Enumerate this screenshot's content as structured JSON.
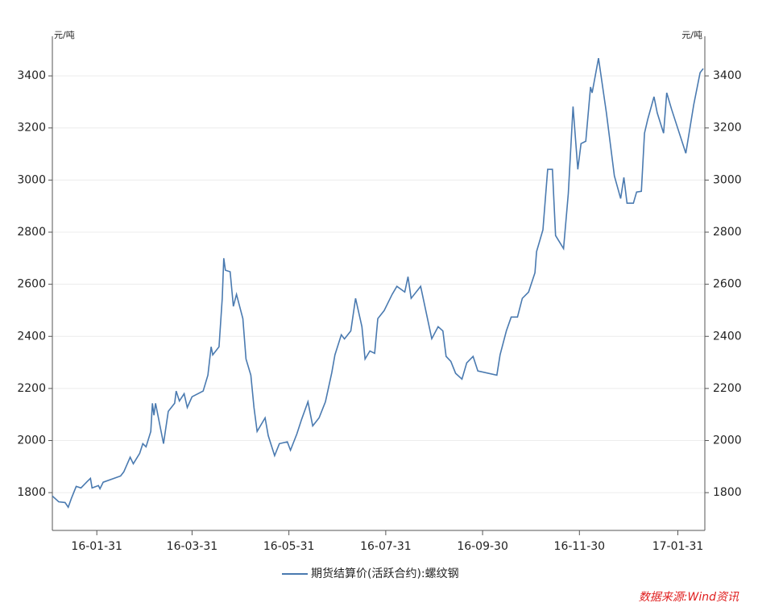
{
  "chart_data": {
    "type": "line",
    "y_unit": "元/吨",
    "y2_unit": "元/吨",
    "source": "数据来源:Wind资讯",
    "xlim": [
      "16-01-03",
      "17-02-17"
    ],
    "xticks": [
      "16-01-31",
      "16-03-31",
      "16-05-31",
      "16-07-31",
      "16-09-30",
      "16-11-30",
      "17-01-31"
    ],
    "ylim": [
      1655,
      3552
    ],
    "yticks": [
      1800,
      2000,
      2200,
      2400,
      2600,
      2800,
      3000,
      3200,
      3400
    ],
    "y2lim": [
      1655,
      3552
    ],
    "y2ticks": [
      1800,
      2000,
      2200,
      2400,
      2600,
      2800,
      3000,
      3200,
      3400
    ],
    "grid": true,
    "legend": "bottom",
    "x": [
      "16-01-03",
      "16-01-07",
      "16-01-11",
      "16-01-13",
      "16-01-15",
      "16-01-18",
      "16-01-21",
      "16-01-25",
      "16-01-27",
      "16-01-28",
      "16-02-01",
      "16-02-02",
      "16-02-04",
      "16-02-15",
      "16-02-17",
      "16-02-21",
      "16-02-23",
      "16-02-27",
      "16-02-29",
      "16-03-02",
      "16-03-05",
      "16-03-06",
      "16-03-07",
      "16-03-08",
      "16-03-13",
      "16-03-16",
      "16-03-20",
      "16-03-21",
      "16-03-23",
      "16-03-26",
      "16-03-28",
      "16-03-31",
      "16-04-07",
      "16-04-10",
      "16-04-12",
      "16-04-13",
      "16-04-17",
      "16-04-19",
      "16-04-20",
      "16-04-21",
      "16-04-24",
      "16-04-26",
      "16-04-28",
      "16-05-02",
      "16-05-04",
      "16-05-07",
      "16-05-09",
      "16-05-11",
      "16-05-16",
      "16-05-18",
      "16-05-22",
      "16-05-25",
      "16-05-30",
      "16-06-01",
      "16-06-05",
      "16-06-08",
      "16-06-12",
      "16-06-15",
      "16-06-19",
      "16-06-23",
      "16-06-27",
      "16-06-29",
      "16-07-03",
      "16-07-05",
      "16-07-09",
      "16-07-12",
      "16-07-16",
      "16-07-18",
      "16-07-21",
      "16-07-24",
      "16-07-26",
      "16-07-30",
      "16-08-04",
      "16-08-07",
      "16-08-12",
      "16-08-14",
      "16-08-16",
      "16-08-22",
      "16-08-29",
      "16-09-02",
      "16-09-05",
      "16-09-07",
      "16-09-10",
      "16-09-13",
      "16-09-17",
      "16-09-20",
      "16-09-24",
      "16-09-27",
      "16-10-09",
      "16-10-11",
      "16-10-15",
      "16-10-18",
      "16-10-22",
      "16-10-25",
      "16-10-29",
      "16-11-02",
      "16-11-03",
      "16-11-07",
      "16-11-10",
      "16-11-13",
      "16-11-15",
      "16-11-20",
      "16-11-23",
      "16-11-26",
      "16-11-29",
      "16-12-01",
      "16-12-04",
      "16-12-07",
      "16-12-08",
      "16-12-12",
      "16-12-17",
      "16-12-22",
      "16-12-26",
      "16-12-28",
      "16-12-30",
      "17-01-03",
      "17-01-05",
      "17-01-08",
      "17-01-10",
      "17-01-12",
      "17-01-16",
      "17-01-18",
      "17-01-22",
      "17-01-24",
      "17-01-27",
      "17-02-05",
      "17-02-10",
      "17-02-14",
      "17-02-16"
    ],
    "series": [
      {
        "name": "期货结算价(活跃合约):螺纹钢",
        "color": "#4a7ab0",
        "values": [
          1787,
          1765,
          1762,
          1744,
          1778,
          1824,
          1818,
          1843,
          1855,
          1818,
          1827,
          1815,
          1840,
          1864,
          1880,
          1936,
          1911,
          1951,
          1988,
          1976,
          2035,
          2143,
          2097,
          2143,
          1988,
          2112,
          2143,
          2190,
          2152,
          2180,
          2127,
          2168,
          2190,
          2251,
          2360,
          2329,
          2360,
          2546,
          2700,
          2654,
          2648,
          2515,
          2561,
          2468,
          2313,
          2251,
          2127,
          2035,
          2087,
          2019,
          1942,
          1988,
          1995,
          1963,
          2025,
          2081,
          2149,
          2056,
          2087,
          2149,
          2261,
          2329,
          2406,
          2390,
          2421,
          2546,
          2437,
          2313,
          2344,
          2335,
          2468,
          2499,
          2561,
          2592,
          2570,
          2629,
          2546,
          2592,
          2391,
          2437,
          2421,
          2323,
          2304,
          2258,
          2236,
          2298,
          2323,
          2267,
          2251,
          2329,
          2421,
          2474,
          2474,
          2546,
          2570,
          2644,
          2725,
          2809,
          3041,
          3041,
          2787,
          2737,
          2948,
          3282,
          3041,
          3140,
          3149,
          3357,
          3335,
          3468,
          3258,
          3016,
          2929,
          3010,
          2911,
          2911,
          2954,
          2957,
          3180,
          3233,
          3320,
          3258,
          3180,
          3335,
          3273,
          3103,
          3289,
          3412,
          3428
        ]
      }
    ]
  }
}
